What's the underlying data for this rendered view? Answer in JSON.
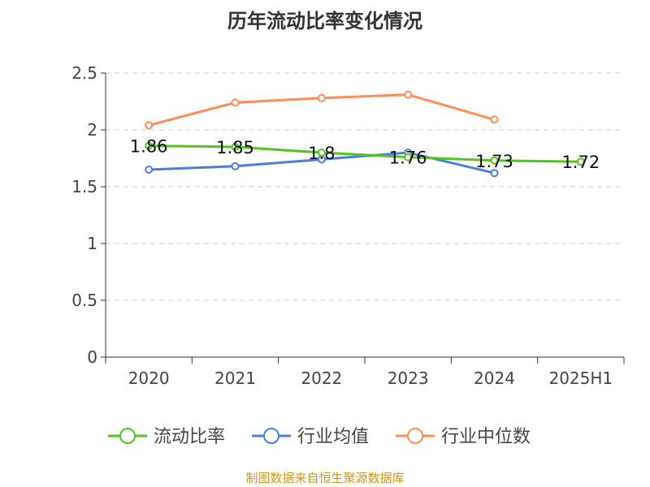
{
  "chart_data": {
    "type": "line",
    "title": "历年流动比率变化情况",
    "categories": [
      "2020",
      "2021",
      "2022",
      "2023",
      "2024",
      "2025H1"
    ],
    "ylim": [
      0,
      2.5
    ],
    "yticks": [
      "0",
      "0.5",
      "1",
      "1.5",
      "2",
      "2.5"
    ],
    "ytick_values": [
      0,
      0.5,
      1,
      1.5,
      2,
      2.5
    ],
    "grid": true,
    "legend_position": "bottom",
    "series": [
      {
        "name": "流动比率",
        "color": "#52c41a",
        "values": [
          1.86,
          1.85,
          1.8,
          1.76,
          1.73,
          1.72
        ],
        "labels": [
          "1.86",
          "1.85",
          "1.8",
          "1.76",
          "1.73",
          "1.72"
        ]
      },
      {
        "name": "行业均值",
        "color": "#4a7fe0",
        "values": [
          1.65,
          1.68,
          1.74,
          1.8,
          1.62,
          null
        ]
      },
      {
        "name": "行业中位数",
        "color": "#ff8c55",
        "values": [
          2.04,
          2.24,
          2.28,
          2.31,
          2.09,
          null
        ]
      }
    ]
  },
  "source": "制图数据来自恒生聚源数据库"
}
